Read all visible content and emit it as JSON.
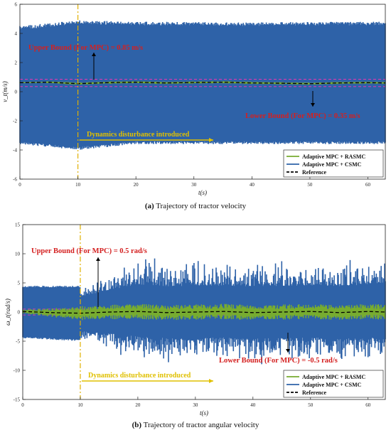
{
  "captions": [
    {
      "letter": "(a)",
      "text": " Trajectory of tractor velocity"
    },
    {
      "letter": "(b)",
      "text": " Trajectory of tractor angular velocity"
    }
  ],
  "chart_data": [
    {
      "type": "line",
      "ylabel": "v_t(m/s)",
      "xlabel": "t(s)",
      "xlim": [
        0,
        63
      ],
      "ylim": [
        -6,
        6
      ],
      "xticks": [
        0,
        10,
        20,
        30,
        40,
        50,
        60
      ],
      "yticks": [
        -6,
        -4,
        -2,
        0,
        2,
        4,
        6
      ],
      "grid": false,
      "legend_position": "bottom-right",
      "series": [
        {
          "name": "Adaptive MPC + RASMC",
          "color": "#77ac30",
          "description": "tight oscillation around the reference",
          "x": [
            0,
            10,
            20,
            30,
            40,
            50,
            60,
            63
          ],
          "amplitude": [
            0.05,
            0.08,
            0.08,
            0.08,
            0.08,
            0.08,
            0.08,
            0.08
          ]
        },
        {
          "name": "Adaptive MPC + CSMC",
          "color": "#2e62a8",
          "description": "wide oscillation band around the reference",
          "x": [
            0,
            10,
            20,
            30,
            40,
            50,
            60,
            63
          ],
          "upper": [
            4.5,
            4.9,
            4.8,
            4.8,
            4.75,
            4.8,
            4.8,
            4.8
          ],
          "lower": [
            -3.6,
            -4.0,
            -3.6,
            -3.6,
            -3.6,
            -3.6,
            -3.6,
            -3.6
          ]
        },
        {
          "name": "Reference",
          "color": "#000000",
          "dash": true,
          "x": [
            0,
            5,
            10,
            15,
            20,
            25,
            30,
            35,
            40,
            45,
            50,
            55,
            60,
            63
          ],
          "y": [
            0.62,
            0.65,
            0.55,
            0.62,
            0.65,
            0.6,
            0.63,
            0.65,
            0.6,
            0.58,
            0.55,
            0.6,
            0.62,
            0.6
          ]
        }
      ],
      "bounds": [
        {
          "value": 0.85,
          "label": "Upper Bound (For MPC) = 0.85 m/s"
        },
        {
          "value": 0.35,
          "label": "Lower Bound (For MPC) = 0.35 m/s"
        }
      ],
      "annotation": {
        "x": 10,
        "label": "Dynamics disturbance introduced"
      }
    },
    {
      "type": "line",
      "ylabel": "ω_t(rad/s)",
      "xlabel": "t(s)",
      "xlim": [
        0,
        63
      ],
      "ylim": [
        -15,
        15
      ],
      "xticks": [
        0,
        10,
        20,
        30,
        40,
        50,
        60
      ],
      "yticks": [
        -15,
        -10,
        -5,
        0,
        5,
        10,
        15
      ],
      "grid": false,
      "legend_position": "bottom-right",
      "series": [
        {
          "name": "Adaptive MPC + RASMC",
          "color": "#77ac30",
          "description": "small oscillation around the reference",
          "x": [
            0,
            10,
            20,
            30,
            40,
            50,
            60,
            63
          ],
          "amplitude": [
            0.3,
            1.2,
            1.3,
            1.3,
            1.3,
            1.3,
            1.3,
            1.3
          ]
        },
        {
          "name": "Adaptive MPC + CSMC",
          "color": "#2e62a8",
          "description": "large oscillation band around the reference",
          "x": [
            0,
            10,
            20,
            30,
            40,
            50,
            60,
            63
          ],
          "upper": [
            4.5,
            4.5,
            9.5,
            9,
            9,
            9,
            9.5,
            10.5
          ],
          "lower": [
            -4.5,
            -5,
            -8.5,
            -9,
            -9,
            -9,
            -9,
            -9.5
          ]
        },
        {
          "name": "Reference",
          "color": "#000000",
          "dash": true,
          "x": [
            0,
            5,
            10,
            15,
            20,
            25,
            30,
            35,
            40,
            45,
            50,
            55,
            60,
            63
          ],
          "y": [
            0.1,
            -0.1,
            -0.2,
            0.0,
            0.1,
            -0.1,
            0.0,
            0.1,
            -0.1,
            0.0,
            0.1,
            -0.1,
            0.1,
            0.0
          ]
        }
      ],
      "bounds": [
        {
          "value": 0.5,
          "label": "Upper Bound (For MPC) = 0.5 rad/s"
        },
        {
          "value": -0.5,
          "label": "Lower Bound (For MPC) = -0.5 rad/s"
        }
      ],
      "annotation": {
        "x": 10,
        "label": "Dynamics disturbance introduced"
      }
    }
  ]
}
